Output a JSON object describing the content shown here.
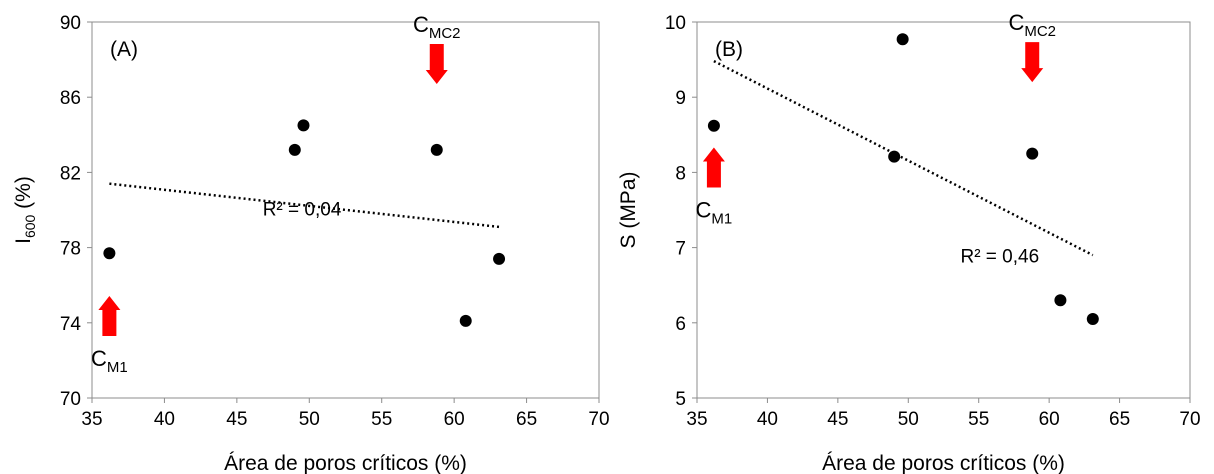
{
  "chart_data": [
    {
      "type": "scatter",
      "panel_label": "(A)",
      "xlabel": "Área de poros críticos (%)",
      "ylabel": {
        "main": "I",
        "sub": "600",
        "suffix": " (%)"
      },
      "xlim": [
        35,
        70
      ],
      "ylim": [
        70,
        90
      ],
      "xticks": [
        35,
        40,
        45,
        50,
        55,
        60,
        65,
        70
      ],
      "yticks": [
        70,
        74,
        78,
        82,
        86,
        90
      ],
      "grid": false,
      "points": [
        {
          "x": 36.2,
          "y": 77.7
        },
        {
          "x": 49.0,
          "y": 83.2
        },
        {
          "x": 49.6,
          "y": 84.5
        },
        {
          "x": 58.8,
          "y": 83.2
        },
        {
          "x": 60.8,
          "y": 74.1
        },
        {
          "x": 63.1,
          "y": 77.4
        }
      ],
      "trendline": {
        "x": [
          36.2,
          63.1
        ],
        "y": [
          81.4,
          79.1
        ]
      },
      "r2_label": "R² = 0,04",
      "r2_anchor": {
        "x": 49.5,
        "y": 79.7
      },
      "annotations": [
        {
          "main": "C",
          "sub": "MC2",
          "x": 58.8,
          "y": 86.7,
          "arrow": "down"
        },
        {
          "main": "C",
          "sub": "M1",
          "x": 36.2,
          "y": 73.3,
          "arrow": "up"
        }
      ],
      "arrow_color": "#ff0000"
    },
    {
      "type": "scatter",
      "panel_label": "(B)",
      "xlabel": "Área de poros críticos (%)",
      "ylabel": {
        "main": "S (MPa)",
        "sub": "",
        "suffix": ""
      },
      "xlim": [
        35,
        70
      ],
      "ylim": [
        5,
        10
      ],
      "xticks": [
        35,
        40,
        45,
        50,
        55,
        60,
        65,
        70
      ],
      "yticks": [
        5,
        6,
        7,
        8,
        9,
        10
      ],
      "grid": false,
      "points": [
        {
          "x": 36.2,
          "y": 8.62
        },
        {
          "x": 49.0,
          "y": 8.21
        },
        {
          "x": 49.6,
          "y": 9.77
        },
        {
          "x": 58.8,
          "y": 8.25
        },
        {
          "x": 60.8,
          "y": 6.3
        },
        {
          "x": 63.1,
          "y": 6.05
        }
      ],
      "trendline": {
        "x": [
          36.2,
          63.1
        ],
        "y": [
          9.48,
          6.9
        ]
      },
      "r2_label": "R² = 0,46",
      "r2_anchor": {
        "x": 56.5,
        "y": 6.8
      },
      "annotations": [
        {
          "main": "C",
          "sub": "MC2",
          "x": 58.8,
          "y": 9.2,
          "arrow": "down"
        },
        {
          "main": "C",
          "sub": "M1",
          "x": 36.2,
          "y": 7.8,
          "arrow": "up"
        }
      ],
      "arrow_color": "#ff0000"
    }
  ]
}
